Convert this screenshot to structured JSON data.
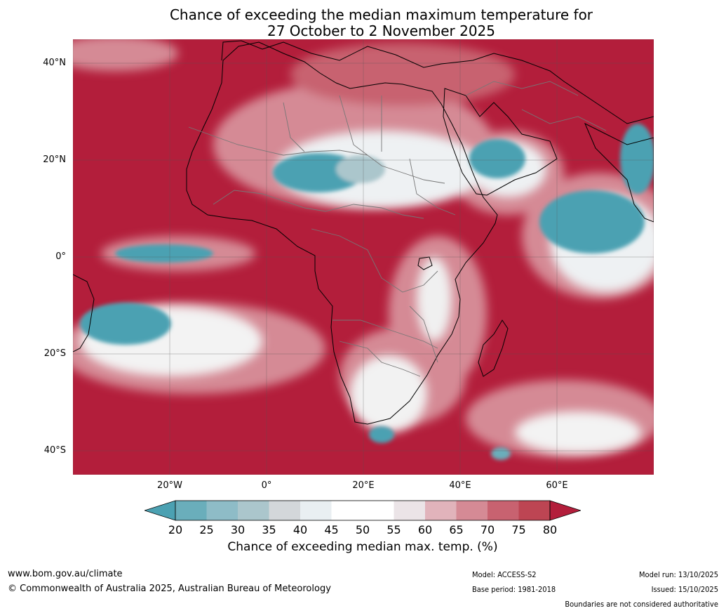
{
  "title_line1": "Chance of exceeding the median maximum temperature for",
  "title_line2": "27 October to 2 November 2025",
  "lat_labels": [
    "40°N",
    "20°N",
    "0°",
    "20°S",
    "40°S"
  ],
  "lon_labels": [
    "20°W",
    "0°",
    "20°E",
    "40°E",
    "60°E"
  ],
  "colorbar": {
    "ticks": [
      "20",
      "25",
      "30",
      "35",
      "40",
      "45",
      "50",
      "55",
      "60",
      "65",
      "70",
      "75",
      "80"
    ],
    "colors": [
      "#4ba1b2",
      "#6aaebb",
      "#8ebcc7",
      "#abc6cc",
      "#d3d7da",
      "#e9eff2",
      "#ffffff",
      "#ffffff",
      "#ebe4e7",
      "#e1b3bb",
      "#d58a95",
      "#c86270",
      "#bd4553",
      "#b31e3b"
    ],
    "label": "Chance of exceeding median max. temp. (%)"
  },
  "footer": {
    "website": "www.bom.gov.au/climate",
    "copyright": "© Commonwealth of Australia 2025, Australian Bureau of Meteorology",
    "model": "Model: ACCESS-S2",
    "base_period": "Base period: 1981-2018",
    "model_run": "Model run: 13/10/2025",
    "issued": "Issued: 15/10/2025",
    "disclaimer": "Boundaries are not considered authoritative"
  }
}
